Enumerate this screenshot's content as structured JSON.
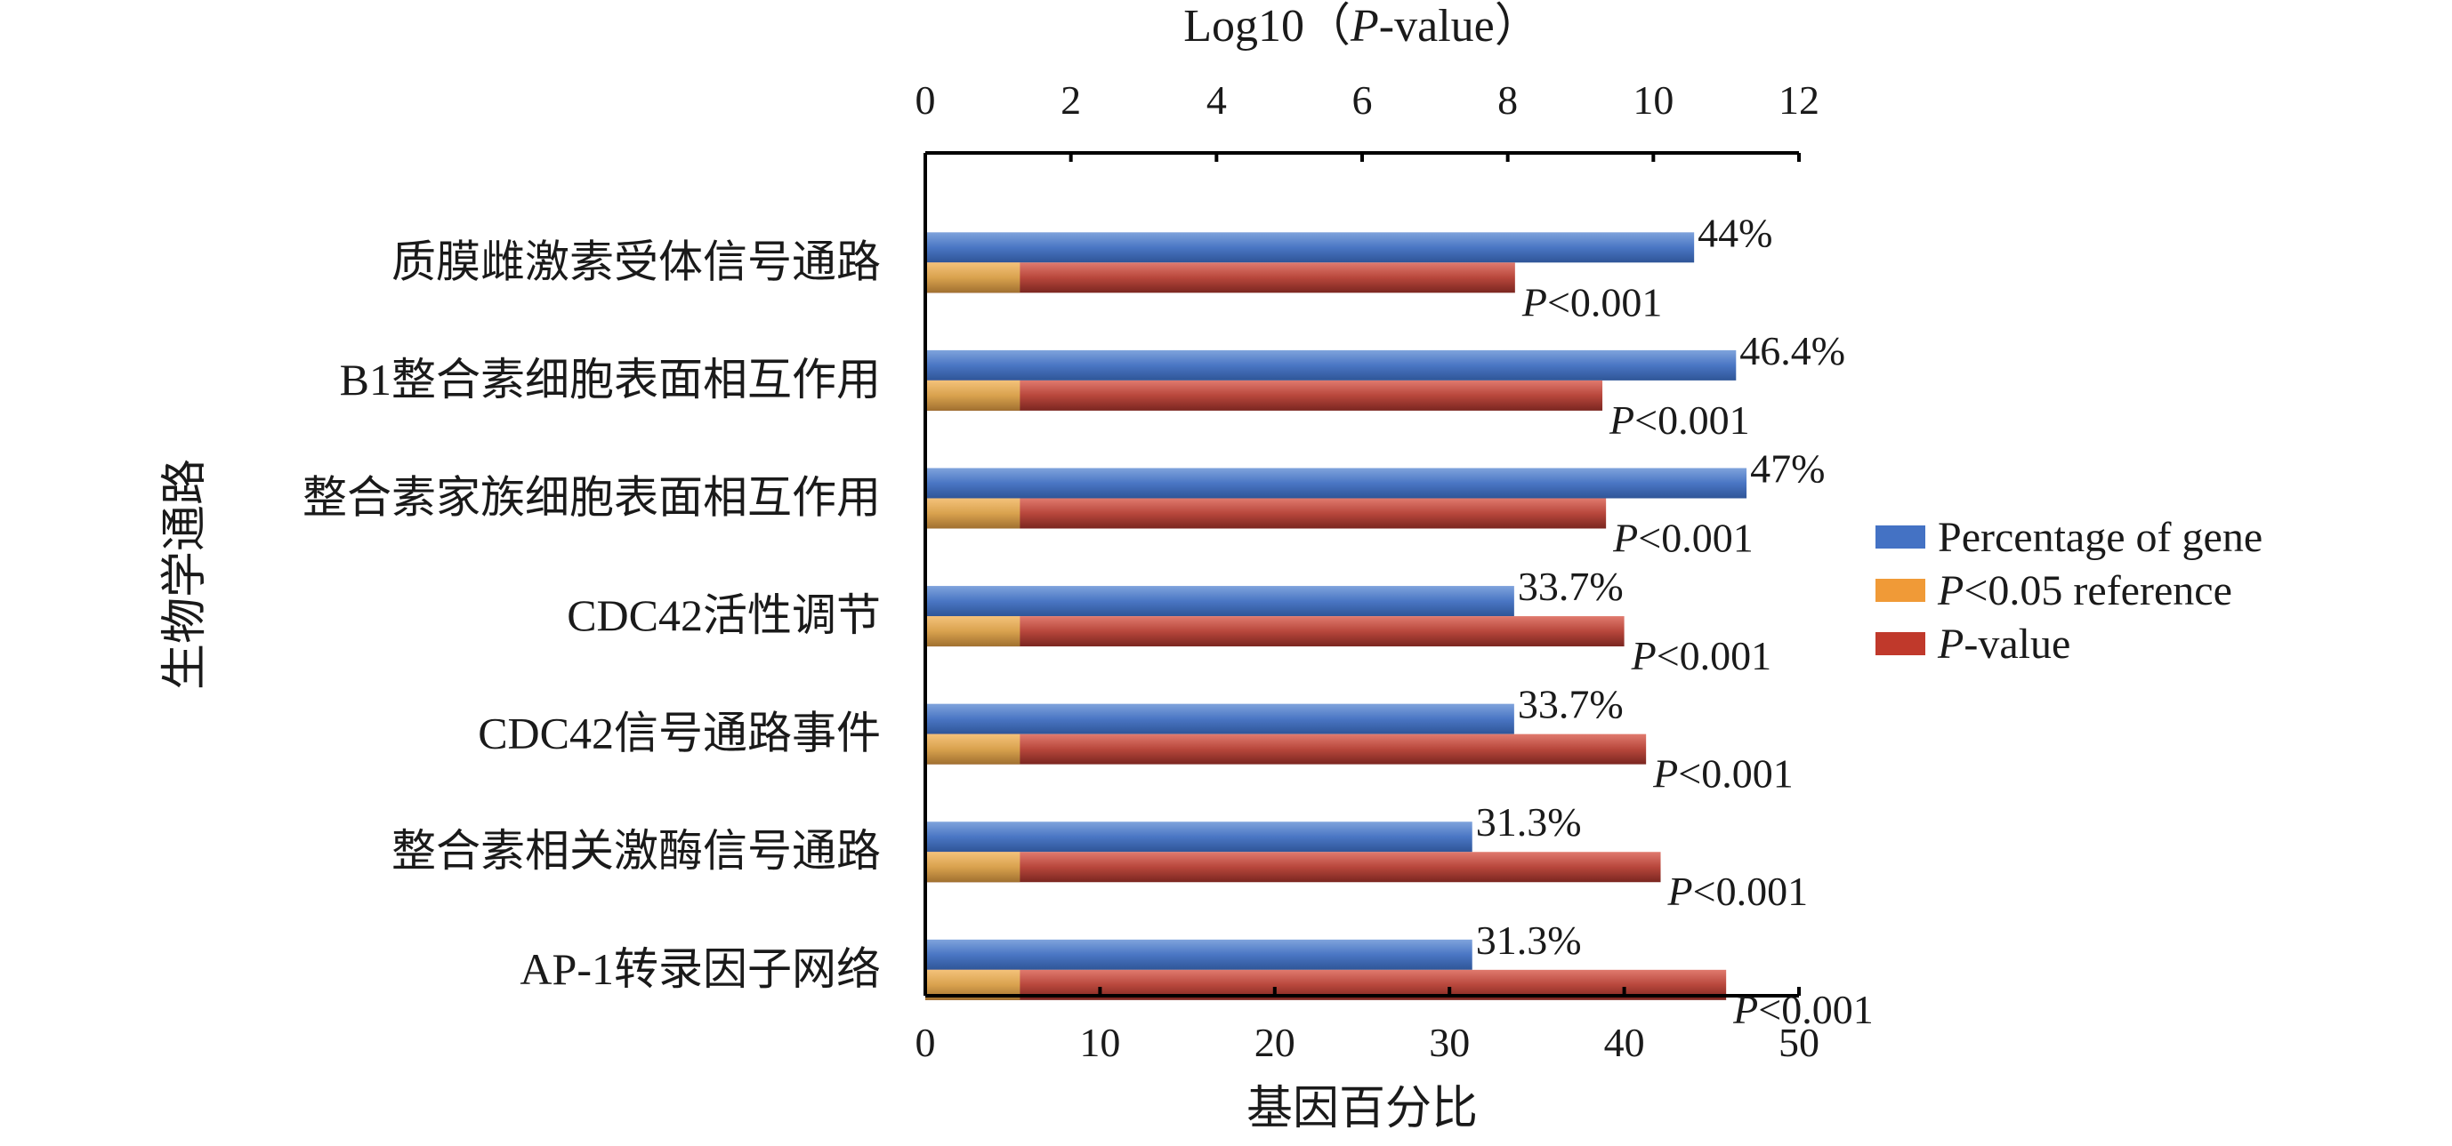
{
  "chart_data": {
    "type": "bar",
    "orientation": "horizontal",
    "categories": [
      "质膜雌激素受体信号通路",
      "B1整合素细胞表面相互作用",
      "整合素家族细胞表面相互作用",
      "CDC42活性调节",
      "CDC42信号通路事件",
      "整合素相关激酶信号通路",
      "AP-1转录因子网络"
    ],
    "series": [
      {
        "name": "Percentage of gene",
        "axis": "bottom",
        "color": "#4472C4",
        "values": [
          44,
          46.4,
          47,
          33.7,
          33.7,
          31.3,
          31.3
        ],
        "labels": [
          "44%",
          "46.4%",
          "47%",
          "33.7%",
          "33.7%",
          "31.3%",
          "31.3%"
        ]
      },
      {
        "name": "P<0.05 reference",
        "axis": "top",
        "color": "#F09A37",
        "values": [
          1.3,
          1.3,
          1.3,
          1.3,
          1.3,
          1.3,
          1.3
        ]
      },
      {
        "name": "P-value",
        "axis": "top",
        "color": "#C0392B",
        "values": [
          8.1,
          9.3,
          9.35,
          9.6,
          9.9,
          10.1,
          11.0
        ],
        "labels": [
          "P<0.001",
          "P<0.001",
          "P<0.001",
          "P<0.001",
          "P<0.001",
          "P<0.001",
          "P<0.001"
        ]
      }
    ],
    "xlabel_bottom": "基因百分比",
    "xlim_bottom": [
      0,
      50
    ],
    "xticks_bottom": [
      "0",
      "10",
      "20",
      "30",
      "40",
      "50"
    ],
    "xlabel_top_prefix": "Log10（",
    "xlabel_top_italic": "P",
    "xlabel_top_suffix": "-value）",
    "xlim_top": [
      0,
      12
    ],
    "xticks_top": [
      "0",
      "2",
      "4",
      "6",
      "8",
      "10",
      "12"
    ],
    "ylabel": "生物学通路",
    "grid": false,
    "legend_position": "right",
    "legend": [
      {
        "prefix": "",
        "italic": "",
        "text": "Percentage of gene",
        "color": "#4472C4"
      },
      {
        "prefix": "",
        "italic": "P",
        "text": "<0.05 reference",
        "color": "#F09A37"
      },
      {
        "prefix": "",
        "italic": "P",
        "text": "-value",
        "color": "#C0392B"
      }
    ]
  }
}
